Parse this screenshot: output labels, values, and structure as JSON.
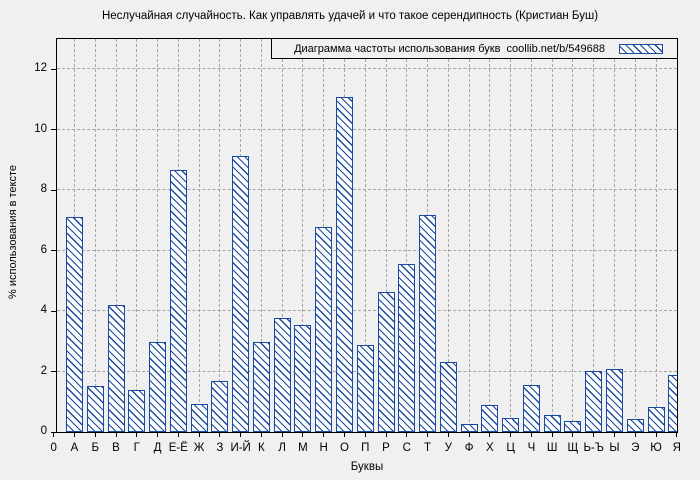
{
  "title": "Неслучайная случайность. Как управлять удачей и что такое серендипность (Кристиан Буш)",
  "legend": {
    "label": "Диаграмма частоты использования букв  coollib.net/b/549688",
    "swatch": "blue-diagonal-hatch"
  },
  "y_axis": {
    "label": "% использования в тексте",
    "ticks": [
      0,
      2,
      4,
      6,
      8,
      10,
      12
    ]
  },
  "x_axis": {
    "label": "Буквы"
  },
  "colors": {
    "bar": "#1a49a0",
    "background": "#f0f0f0",
    "grid": "#a6a6a6",
    "axis": "#000000"
  },
  "chart_data": {
    "type": "bar",
    "title": "Диаграмма частоты использования букв coollib.net/b/549688",
    "xlabel": "Буквы",
    "ylabel": "% использования в тексте",
    "ylim": [
      0,
      13
    ],
    "grid": true,
    "legend_position": "top-right",
    "hatch": "diagonal",
    "categories": [
      "0",
      "А",
      "Б",
      "В",
      "Г",
      "Д",
      "Е-Ё",
      "Ж",
      "З",
      "И-Й",
      "К",
      "Л",
      "М",
      "Н",
      "О",
      "П",
      "Р",
      "С",
      "Т",
      "У",
      "Ф",
      "Х",
      "Ц",
      "Ч",
      "Ш",
      "Щ",
      "Ь-Ъ",
      "Ы",
      "Э",
      "Ю",
      "Я"
    ],
    "values": [
      0,
      7.1,
      1.52,
      4.2,
      1.38,
      2.98,
      8.67,
      0.94,
      1.67,
      9.13,
      2.98,
      3.78,
      3.55,
      6.78,
      11.07,
      2.86,
      4.63,
      5.55,
      7.17,
      2.33,
      0.27,
      0.9,
      0.46,
      1.56,
      0.57,
      0.35,
      2.03,
      2.09,
      0.44,
      0.83,
      1.9
    ]
  }
}
